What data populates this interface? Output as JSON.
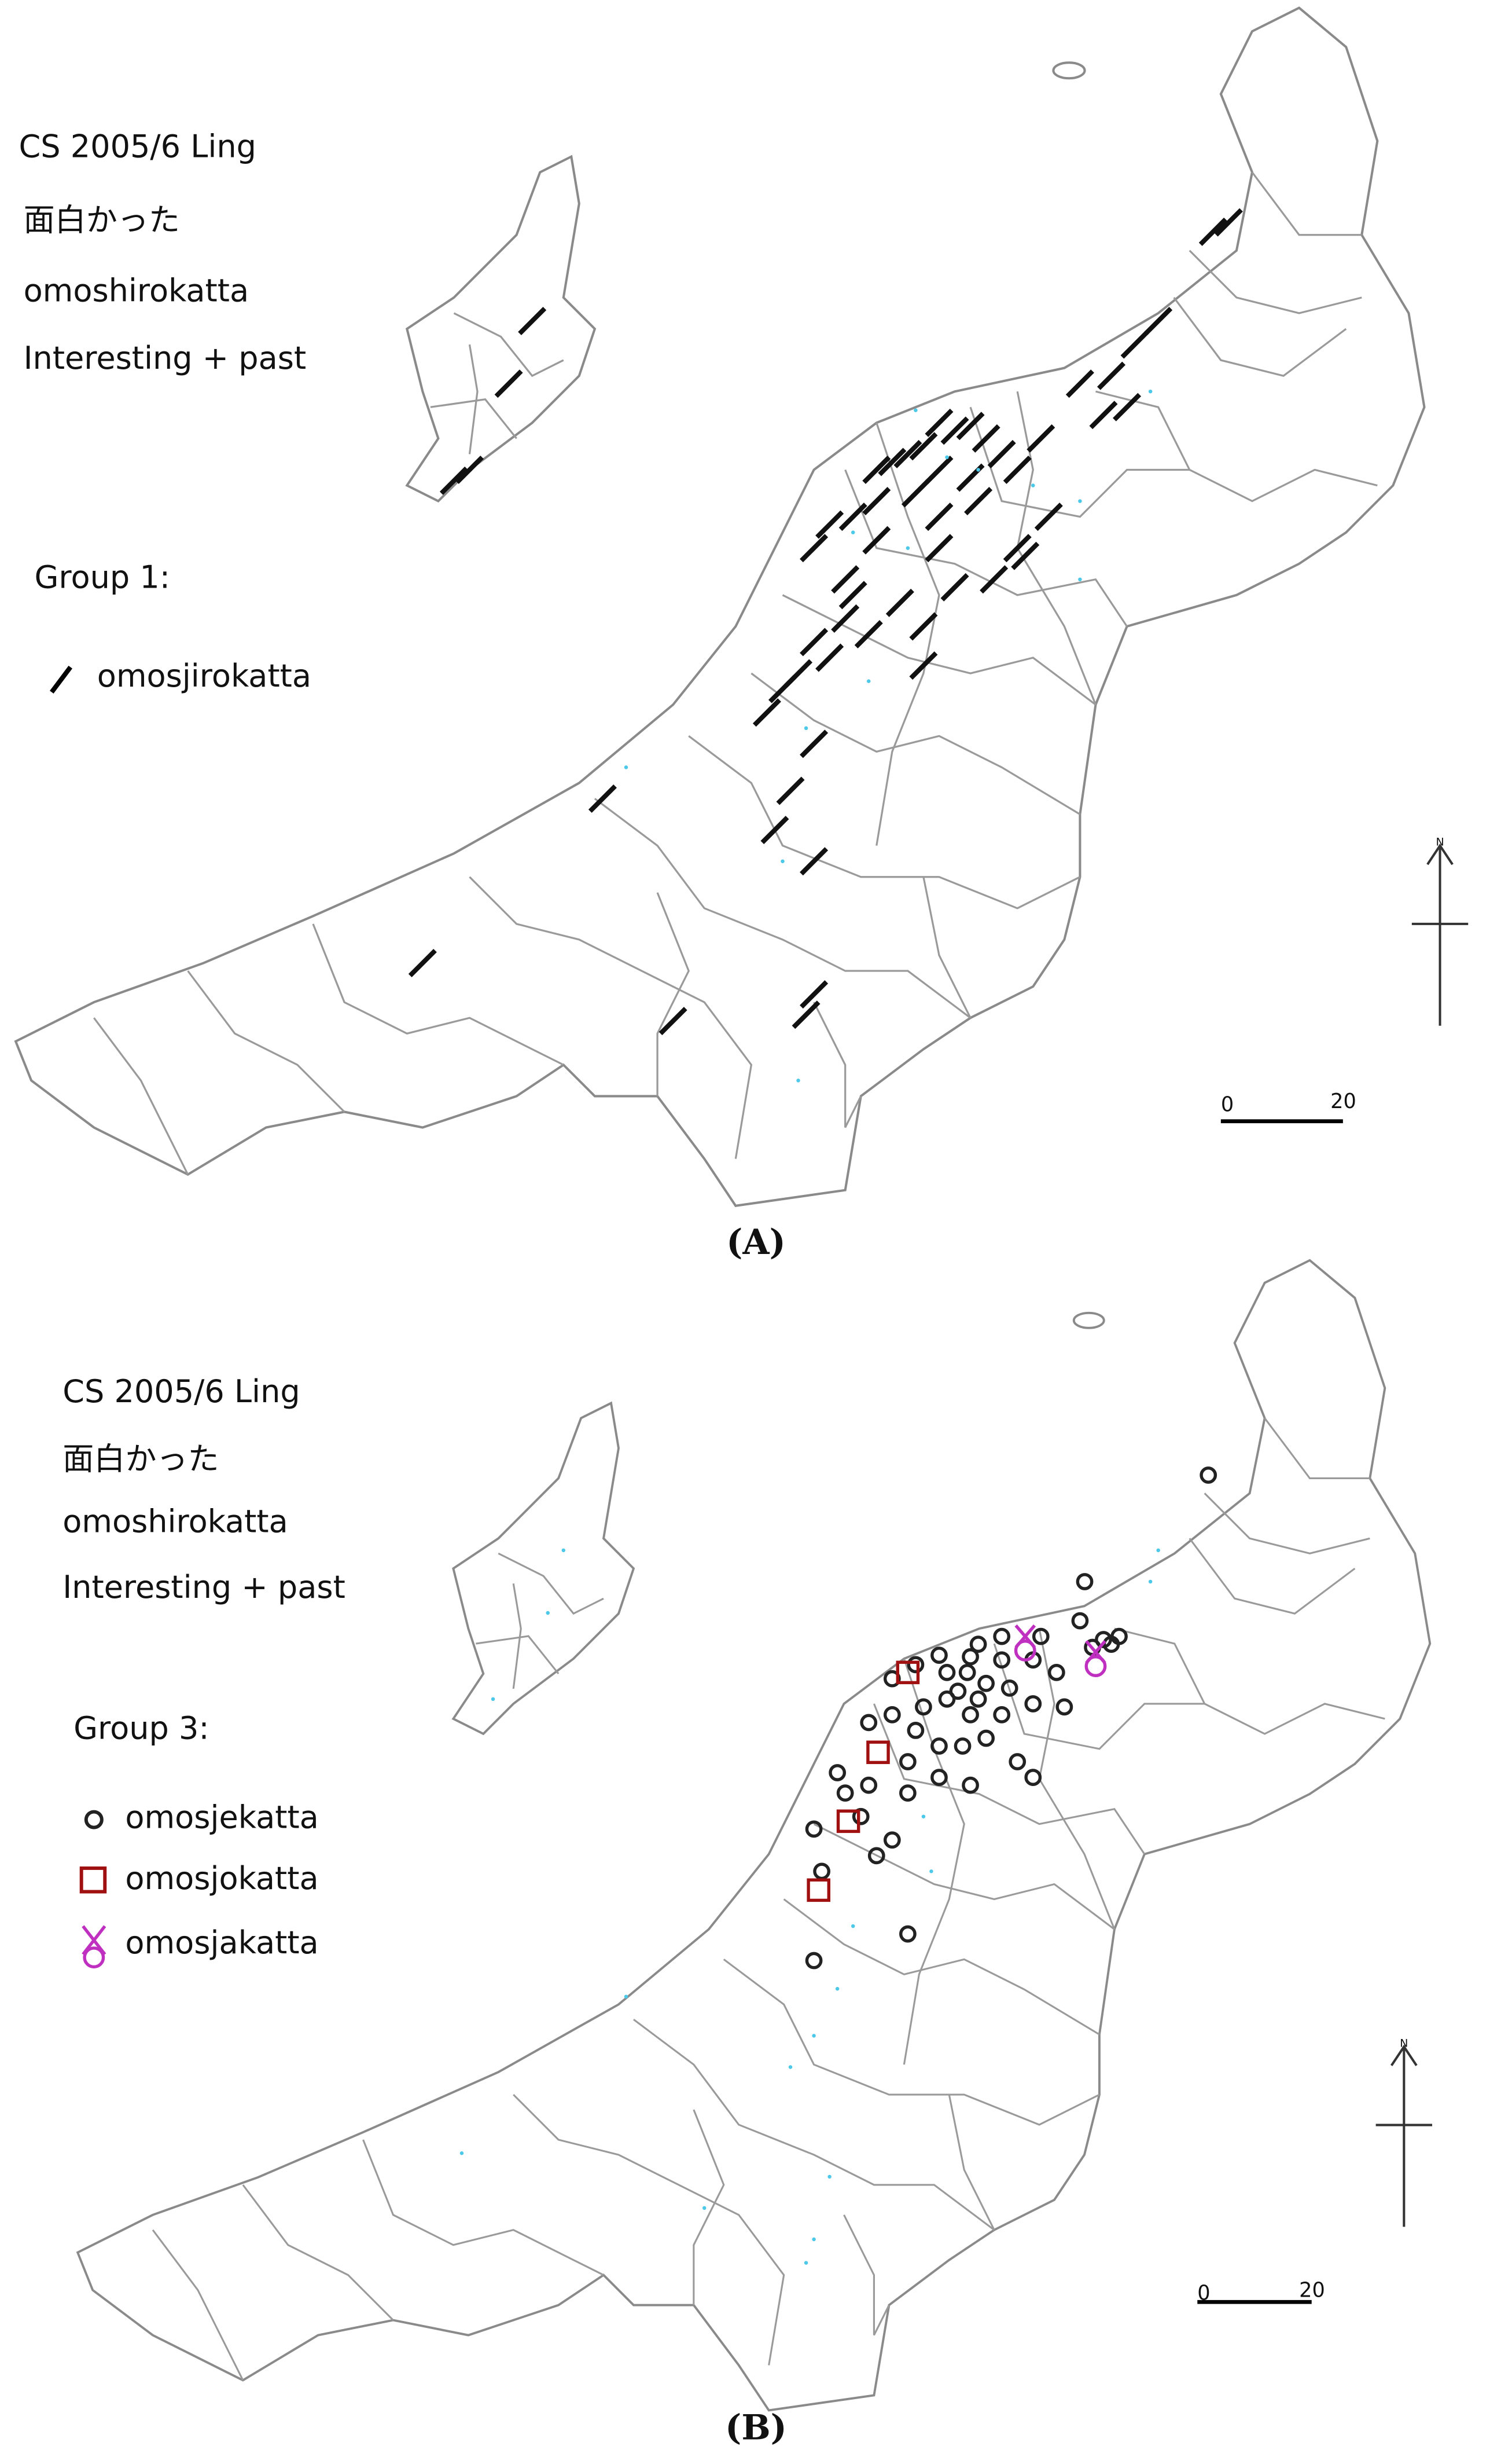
{
  "panels": [
    {
      "title_lines": [
        "CS 2005/6 Ling",
        "面白かった",
        "omoshirokatta",
        "Interesting + past"
      ],
      "group": "Group 1:",
      "legend": [
        "omosjirokatta"
      ],
      "scale": [
        "0",
        "20"
      ],
      "north": "N",
      "caption": "(A)"
    },
    {
      "title_lines": [
        "CS 2005/6 Ling",
        "面白かった",
        "omoshirokatta",
        "Interesting + past"
      ],
      "group": "Group 3:",
      "legend": [
        "omosjekatta",
        "omosjokatta",
        "omosjakatta"
      ],
      "scale": [
        "0",
        "20"
      ],
      "north": "N",
      "caption": "(B)"
    }
  ]
}
